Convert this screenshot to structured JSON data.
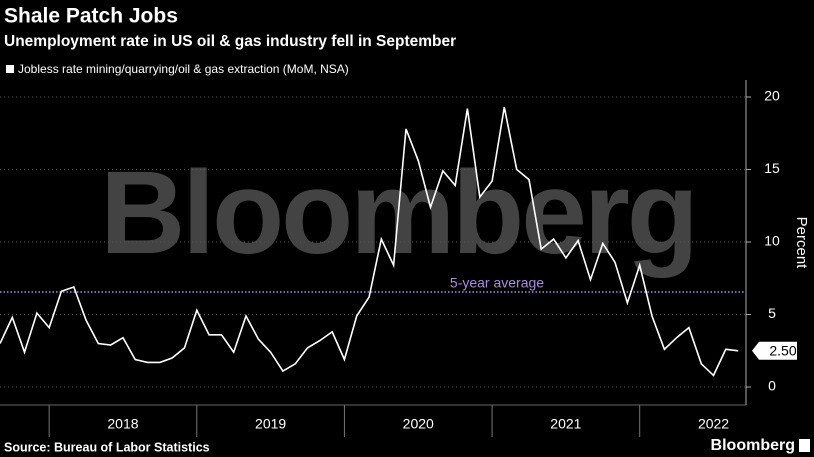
{
  "chart_data": {
    "type": "line",
    "title": "Shale Patch Jobs",
    "subtitle": "Unemployment rate in US oil & gas industry fell in September",
    "y_label": "Percent",
    "source": "Source: Bureau of Labor Statistics",
    "brand": "Bloomberg",
    "watermark": "Bloomberg",
    "reference_line": {
      "value": 6.55,
      "label": "5-year average",
      "color": "#a98be0"
    },
    "x": [
      2017.667,
      2017.75,
      2017.833,
      2017.917,
      2018,
      2018.083,
      2018.167,
      2018.25,
      2018.333,
      2018.417,
      2018.5,
      2018.583,
      2018.667,
      2018.75,
      2018.833,
      2018.917,
      2019,
      2019.083,
      2019.167,
      2019.25,
      2019.333,
      2019.417,
      2019.5,
      2019.583,
      2019.667,
      2019.75,
      2019.833,
      2019.917,
      2020,
      2020.083,
      2020.167,
      2020.25,
      2020.333,
      2020.417,
      2020.5,
      2020.583,
      2020.667,
      2020.75,
      2020.833,
      2020.917,
      2021,
      2021.083,
      2021.167,
      2021.25,
      2021.333,
      2021.417,
      2021.5,
      2021.583,
      2021.667,
      2021.75,
      2021.833,
      2021.917,
      2022,
      2022.083,
      2022.167,
      2022.25,
      2022.333,
      2022.417,
      2022.5,
      2022.583,
      2022.667
    ],
    "series": [
      {
        "name": "Jobless rate mining/quarrying/oil & gas extraction (MoM, NSA)",
        "color": "#ffffff",
        "values": [
          3.0,
          4.8,
          2.4,
          5.1,
          4.1,
          6.6,
          6.9,
          4.6,
          3.0,
          2.9,
          3.4,
          1.9,
          1.7,
          1.7,
          2.0,
          2.7,
          5.3,
          3.6,
          3.6,
          2.4,
          4.9,
          3.3,
          2.4,
          1.1,
          1.6,
          2.7,
          3.2,
          3.8,
          1.9,
          4.9,
          6.2,
          10.2,
          8.4,
          17.8,
          15.6,
          12.4,
          14.9,
          13.9,
          19.2,
          13.1,
          14.2,
          19.3,
          15.0,
          14.3,
          9.5,
          10.2,
          8.9,
          10.1,
          7.4,
          9.9,
          8.6,
          5.8,
          8.4,
          4.9,
          2.6,
          3.4,
          4.1,
          1.6,
          0.8,
          2.6,
          2.5
        ],
        "value_labels": [
          null,
          null,
          null,
          null,
          null,
          null,
          null,
          null,
          null,
          null,
          null,
          null,
          null,
          null,
          null,
          null,
          null,
          null,
          null,
          null,
          null,
          null,
          null,
          null,
          null,
          null,
          null,
          null,
          null,
          null,
          null,
          null,
          null,
          null,
          null,
          null,
          null,
          null,
          null,
          null,
          null,
          null,
          null,
          null,
          null,
          null,
          null,
          null,
          null,
          null,
          null,
          null,
          null,
          null,
          null,
          null,
          null,
          null,
          null,
          null,
          "2.50"
        ]
      }
    ],
    "xlim": [
      2017.667,
      2022.72
    ],
    "xticks": [
      2018,
      2019,
      2020,
      2021,
      2022
    ],
    "ylim": [
      -1.24,
      21.17
    ],
    "yticks": [
      0,
      5,
      10,
      15,
      20
    ],
    "grid": true,
    "legend": "top-left"
  }
}
